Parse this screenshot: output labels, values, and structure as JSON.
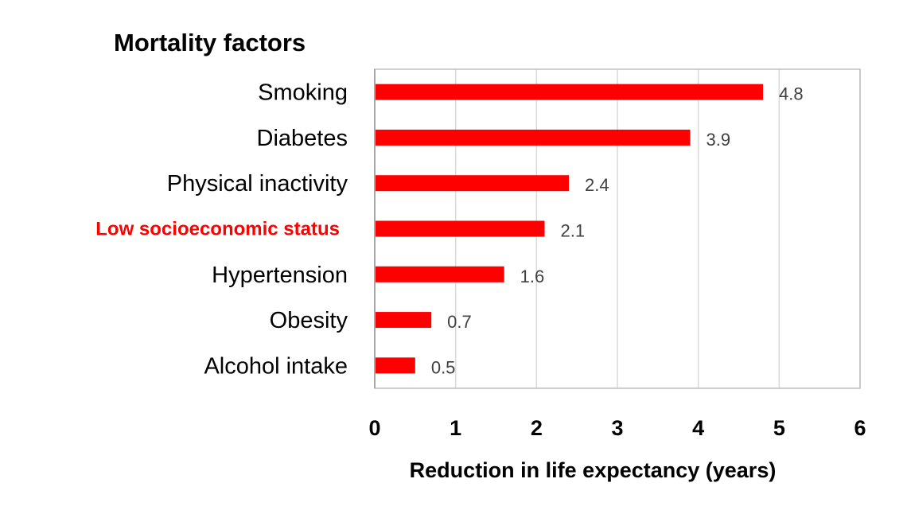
{
  "chart_data": {
    "type": "bar",
    "orientation": "horizontal",
    "title": "Mortality factors",
    "xlabel": "Reduction in life expectancy (years)",
    "ylabel": "",
    "xlim": [
      0,
      6
    ],
    "xticks": [
      "0",
      "1",
      "2",
      "3",
      "4",
      "5",
      "6"
    ],
    "grid": "vertical",
    "categories": [
      "Smoking",
      "Diabetes",
      "Physical inactivity",
      "Low socioeconomic status",
      "Hypertension",
      "Obesity",
      "Alcohol intake"
    ],
    "values": [
      4.8,
      3.9,
      2.4,
      2.1,
      1.6,
      0.7,
      0.5
    ],
    "value_labels": [
      "4.8",
      "3.9",
      "2.4",
      "2.1",
      "1.6",
      "0.7",
      "0.5"
    ],
    "highlighted_category": "Low socioeconomic status",
    "bar_color": "#ff0000",
    "highlight_label_color": "#ff0000"
  }
}
